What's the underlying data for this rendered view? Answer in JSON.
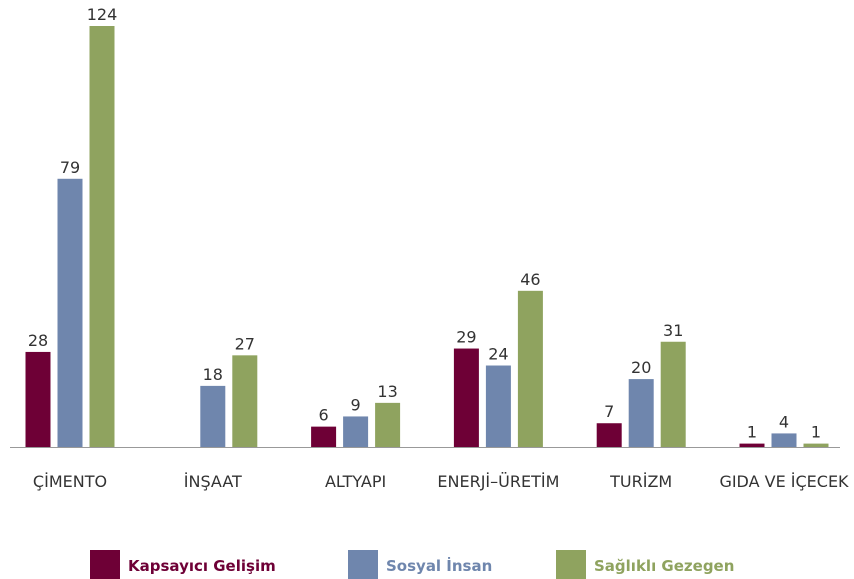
{
  "chart_data": {
    "type": "bar",
    "categories": [
      "ÇİMENTO",
      "İNŞAAT",
      "ALTYAPI",
      "ENERJİ–ÜRETİM",
      "TURİZM",
      "GIDA VE İÇECEK"
    ],
    "series": [
      {
        "name": "Kapsayıcı Gelişim",
        "color": "#6e0036",
        "values": [
          28,
          null,
          6,
          29,
          7,
          1
        ]
      },
      {
        "name": "Sosyal İnsan",
        "color": "#6f86ad",
        "values": [
          79,
          18,
          9,
          24,
          20,
          4
        ]
      },
      {
        "name": "Sağlıklı Gezegen",
        "color": "#8fa35f",
        "values": [
          124,
          27,
          13,
          46,
          31,
          1
        ]
      }
    ]
  }
}
